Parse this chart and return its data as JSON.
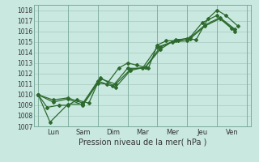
{
  "title": "",
  "xlabel": "Pression niveau de la mer( hPa )",
  "background_color": "#c8e8e0",
  "grid_color": "#a8c8c0",
  "line_color": "#2d6a2d",
  "ylim": [
    1007,
    1018.5
  ],
  "xlim": [
    -0.15,
    7.15
  ],
  "day_labels": [
    "Lun",
    "Sam",
    "Dim",
    "Mar",
    "Mer",
    "Jeu",
    "Ven"
  ],
  "day_positions": [
    0.5,
    1.5,
    2.5,
    3.5,
    4.5,
    5.5,
    6.5
  ],
  "line1_x": [
    0.0,
    0.3,
    0.7,
    1.0,
    1.3,
    1.7,
    2.0,
    2.3,
    2.7,
    3.0,
    3.3,
    3.7,
    4.0,
    4.3,
    4.7,
    5.0,
    5.3,
    5.7,
    6.0,
    6.3,
    6.7
  ],
  "line1_y": [
    1010.0,
    1008.8,
    1009.0,
    1009.0,
    1009.5,
    1009.2,
    1011.1,
    1011.0,
    1012.5,
    1013.0,
    1012.8,
    1012.5,
    1014.7,
    1015.1,
    1015.1,
    1015.3,
    1015.2,
    1017.2,
    1018.0,
    1017.5,
    1016.5
  ],
  "line2_x": [
    0.0,
    0.4,
    1.0,
    1.5,
    2.0,
    2.5,
    3.0,
    3.5,
    4.0,
    4.5,
    5.0,
    5.5,
    6.0,
    6.5
  ],
  "line2_y": [
    1010.0,
    1007.4,
    1009.1,
    1009.1,
    1011.3,
    1010.8,
    1012.5,
    1012.5,
    1014.5,
    1015.0,
    1015.1,
    1016.8,
    1017.5,
    1016.3
  ],
  "line3_x": [
    0.0,
    0.5,
    1.0,
    1.5,
    2.1,
    2.6,
    3.1,
    3.6,
    4.1,
    4.6,
    5.1,
    5.6,
    6.1,
    6.6
  ],
  "line3_y": [
    1010.0,
    1009.3,
    1009.6,
    1009.0,
    1011.5,
    1011.0,
    1012.4,
    1012.6,
    1014.3,
    1015.2,
    1015.3,
    1016.5,
    1017.2,
    1016.0
  ],
  "line4_x": [
    0.0,
    0.5,
    1.0,
    1.5,
    2.1,
    2.6,
    3.1,
    3.6,
    4.1,
    4.6,
    5.1,
    5.6,
    6.1,
    6.6
  ],
  "line4_y": [
    1010.0,
    1009.5,
    1009.7,
    1009.2,
    1011.6,
    1010.7,
    1012.3,
    1012.6,
    1014.5,
    1015.1,
    1015.4,
    1016.6,
    1017.3,
    1016.2
  ],
  "ytick_labels": [
    "1007",
    "1008",
    "1009",
    "1010",
    "1011",
    "1012",
    "1013",
    "1014",
    "1015",
    "1016",
    "1017",
    "1018"
  ],
  "ytick_values": [
    1007,
    1008,
    1009,
    1010,
    1011,
    1012,
    1013,
    1014,
    1015,
    1016,
    1017,
    1018
  ]
}
